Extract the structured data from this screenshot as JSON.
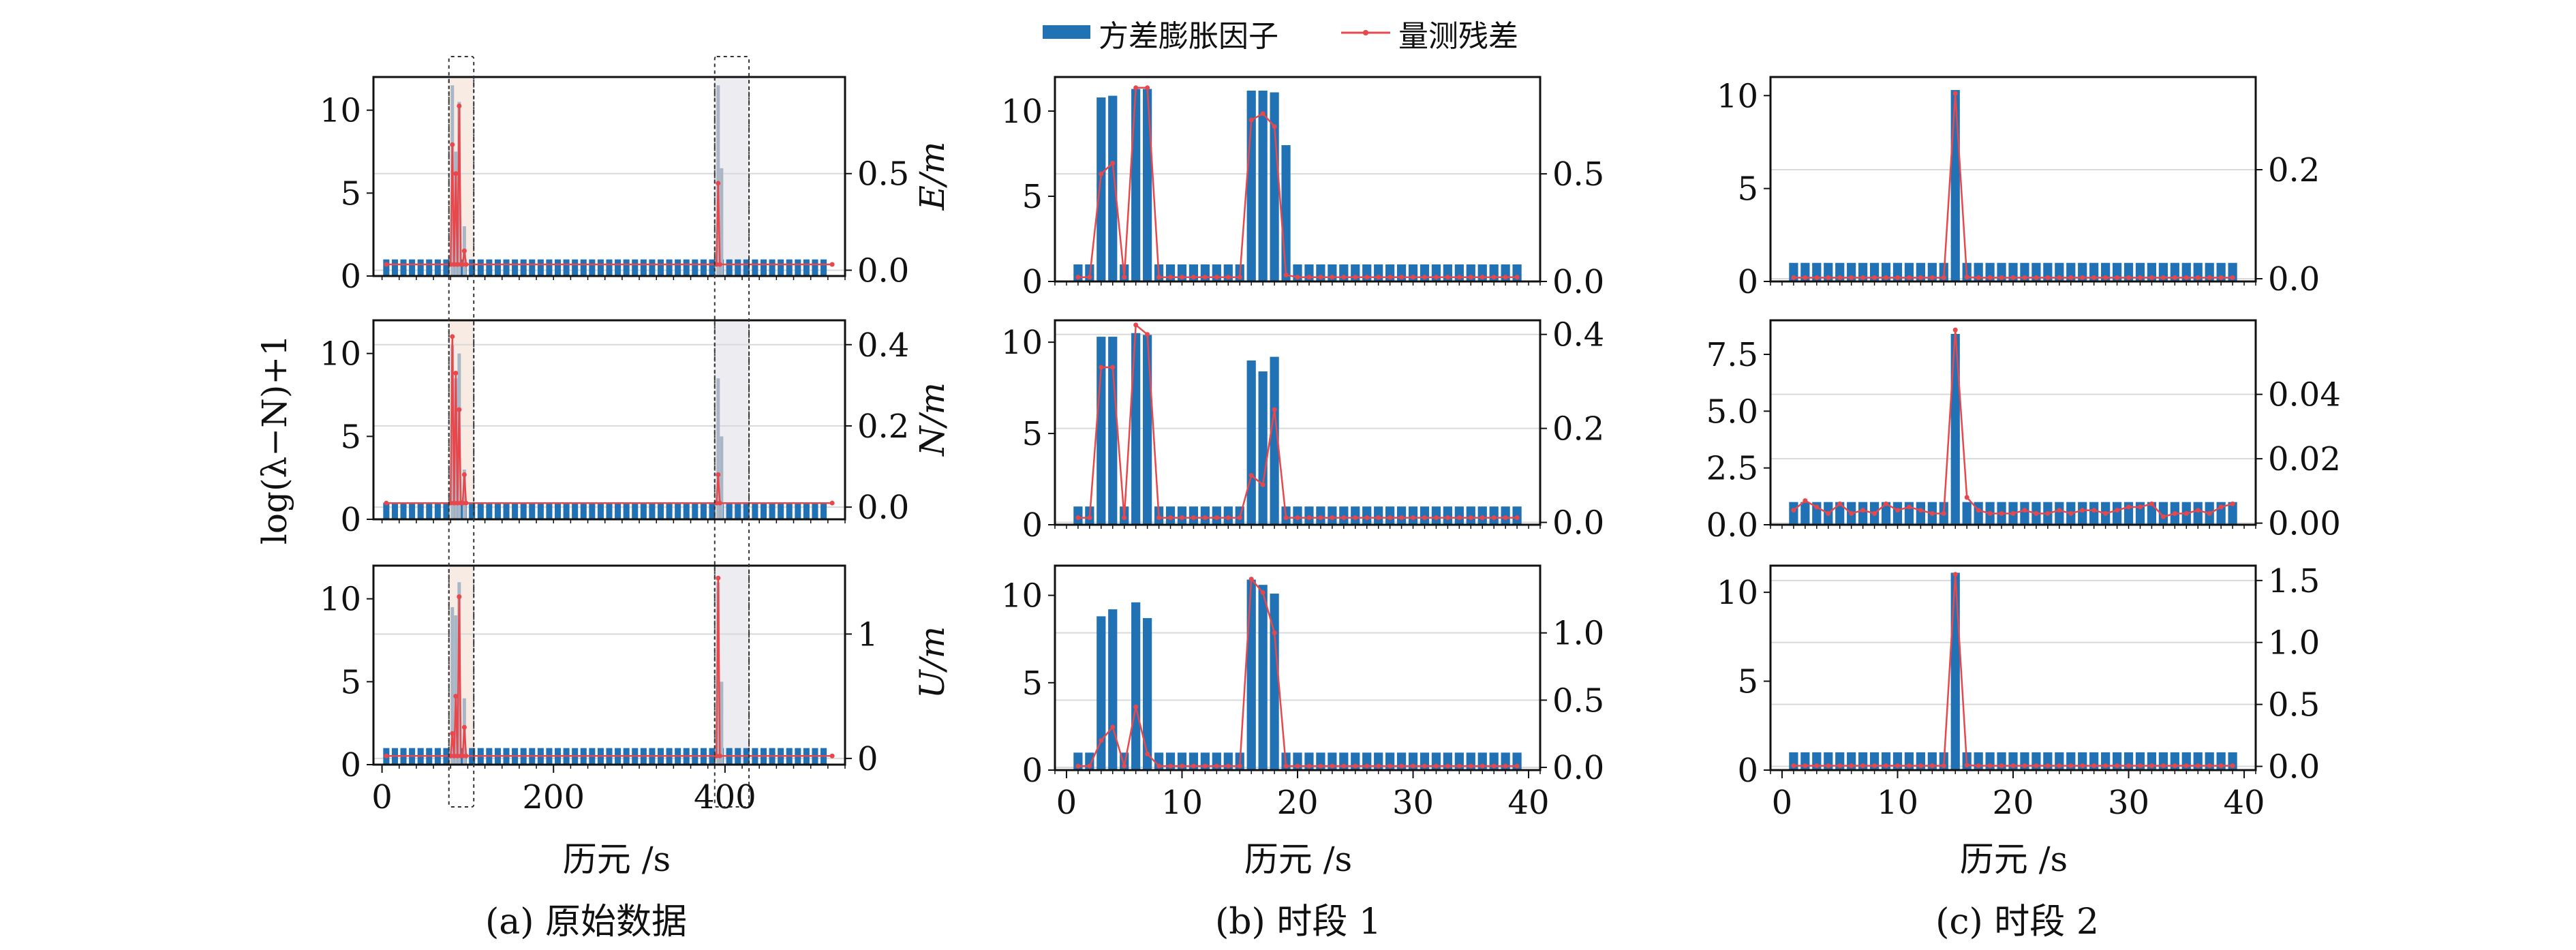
{
  "legend": {
    "bar_label": "方差膨胀因子",
    "line_label": "量测残差"
  },
  "colors": {
    "bar": "#2171b5",
    "line": "#e8474b",
    "highlight_a": "#f7ebe4",
    "highlight_b": "#ececf1",
    "grid": "#d9d9d9"
  },
  "y_label_left": "log(λ−N)+1",
  "row_labels": [
    "E/m",
    "N/m",
    "U/m"
  ],
  "columns": [
    {
      "caption": "(a) 原始数据",
      "xlabel": "历元 /s",
      "x_ticks": [
        "0",
        "200",
        "400"
      ]
    },
    {
      "caption": "(b) 时段 1",
      "xlabel": "历元 /s",
      "x_ticks": [
        "0",
        "10",
        "20",
        "30",
        "40"
      ]
    },
    {
      "caption": "(c) 时段 2",
      "xlabel": "历元 /s",
      "x_ticks": [
        "0",
        "10",
        "20",
        "30",
        "40"
      ]
    }
  ],
  "chart_data": [
    {
      "id": "a-E",
      "type": "bar",
      "panel": "(a) 原始数据",
      "ylabel": "E/m",
      "xlim": [
        -10,
        540
      ],
      "ylim_left": [
        0,
        12
      ],
      "ylim_right": [
        -0.03,
        1.0
      ],
      "left_ticks": [
        "0",
        "5",
        "10"
      ],
      "right_ticks": [
        "0.0",
        "0.5"
      ],
      "highlights": [
        [
          78,
          107
        ],
        [
          388,
          428
        ]
      ],
      "vif": {
        "x_start": 5,
        "x_step": 10,
        "count": 52,
        "baseline": 1,
        "peaks": [
          [
            82,
            11.5
          ],
          [
            86,
            7.5
          ],
          [
            90,
            10.5
          ],
          [
            96,
            3.0
          ],
          [
            392,
            11.5
          ],
          [
            396,
            6.5
          ]
        ]
      },
      "residual": {
        "baseline": 0.03,
        "peaks": [
          [
            82,
            0.65
          ],
          [
            86,
            0.5
          ],
          [
            90,
            0.85
          ],
          [
            96,
            0.1
          ],
          [
            392,
            0.45
          ]
        ]
      }
    },
    {
      "id": "a-N",
      "type": "bar",
      "panel": "(a) 原始数据",
      "ylabel": "N/m",
      "xlim": [
        -10,
        540
      ],
      "ylim_left": [
        0,
        12
      ],
      "ylim_right": [
        -0.03,
        0.46
      ],
      "left_ticks": [
        "0",
        "5",
        "10"
      ],
      "right_ticks": [
        "0.0",
        "0.2",
        "0.4"
      ],
      "highlights": [
        [
          78,
          107
        ],
        [
          388,
          428
        ]
      ],
      "vif": {
        "x_start": 5,
        "x_step": 10,
        "count": 52,
        "baseline": 1,
        "peaks": [
          [
            82,
            10.5
          ],
          [
            86,
            8.5
          ],
          [
            90,
            10.0
          ],
          [
            96,
            3.0
          ],
          [
            392,
            8.5
          ],
          [
            396,
            5.0
          ]
        ]
      },
      "residual": {
        "baseline": 0.01,
        "peaks": [
          [
            82,
            0.42
          ],
          [
            86,
            0.33
          ],
          [
            90,
            0.24
          ],
          [
            96,
            0.08
          ],
          [
            392,
            0.08
          ]
        ]
      }
    },
    {
      "id": "a-U",
      "type": "bar",
      "panel": "(a) 原始数据",
      "ylabel": "U/m",
      "xlim": [
        -10,
        540
      ],
      "ylim_left": [
        0,
        12
      ],
      "ylim_right": [
        -0.05,
        1.55
      ],
      "left_ticks": [
        "0",
        "5",
        "10"
      ],
      "right_ticks": [
        "0",
        "1"
      ],
      "highlights": [
        [
          78,
          107
        ],
        [
          388,
          428
        ]
      ],
      "vif": {
        "x_start": 5,
        "x_step": 10,
        "count": 52,
        "baseline": 1,
        "peaks": [
          [
            82,
            9.5
          ],
          [
            86,
            9.0
          ],
          [
            90,
            11.0
          ],
          [
            96,
            4.0
          ],
          [
            392,
            11.0
          ],
          [
            396,
            5.0
          ]
        ]
      },
      "residual": {
        "baseline": 0.02,
        "peaks": [
          [
            82,
            0.2
          ],
          [
            86,
            0.5
          ],
          [
            90,
            1.3
          ],
          [
            96,
            0.25
          ],
          [
            392,
            1.45
          ]
        ]
      }
    },
    {
      "id": "b-E",
      "type": "bar",
      "panel": "(b) 时段 1",
      "ylabel": "",
      "xlim": [
        -1,
        41
      ],
      "ylim_left": [
        0,
        12
      ],
      "ylim_right": [
        0,
        0.95
      ],
      "left_ticks": [
        "0",
        "5",
        "10"
      ],
      "right_ticks": [
        "0.0",
        "0.5"
      ],
      "x": [
        1,
        2,
        3,
        4,
        5,
        6,
        7,
        8,
        9,
        10,
        11,
        12,
        13,
        14,
        15,
        16,
        17,
        18,
        19,
        20,
        21,
        22,
        23,
        24,
        25,
        26,
        27,
        28,
        29,
        30,
        31,
        32,
        33,
        34,
        35,
        36,
        37,
        38,
        39
      ],
      "vif": [
        1,
        1,
        10.8,
        10.9,
        1,
        11.3,
        11.3,
        1,
        1,
        1,
        1,
        1,
        1,
        1,
        1,
        11.2,
        11.2,
        11.1,
        8,
        1,
        1,
        1,
        1,
        1,
        1,
        1,
        1,
        1,
        1,
        1,
        1,
        1,
        1,
        1,
        1,
        1,
        1,
        1,
        1
      ],
      "residual": [
        0.02,
        0.02,
        0.5,
        0.55,
        0.02,
        0.9,
        0.9,
        0.02,
        0.02,
        0.02,
        0.02,
        0.02,
        0.02,
        0.02,
        0.02,
        0.75,
        0.78,
        0.72,
        0.03,
        0.02,
        0.02,
        0.02,
        0.02,
        0.02,
        0.02,
        0.02,
        0.02,
        0.02,
        0.02,
        0.02,
        0.02,
        0.02,
        0.02,
        0.02,
        0.02,
        0.02,
        0.02,
        0.02,
        0.02
      ]
    },
    {
      "id": "b-N",
      "type": "bar",
      "panel": "(b) 时段 1",
      "ylabel": "",
      "xlim": [
        -1,
        41
      ],
      "ylim_left": [
        0,
        11.2
      ],
      "ylim_right": [
        -0.005,
        0.43
      ],
      "left_ticks": [
        "0",
        "5",
        "10"
      ],
      "right_ticks": [
        "0.0",
        "0.2",
        "0.4"
      ],
      "x": [
        1,
        2,
        3,
        4,
        5,
        6,
        7,
        8,
        9,
        10,
        11,
        12,
        13,
        14,
        15,
        16,
        17,
        18,
        19,
        20,
        21,
        22,
        23,
        24,
        25,
        26,
        27,
        28,
        29,
        30,
        31,
        32,
        33,
        34,
        35,
        36,
        37,
        38,
        39
      ],
      "vif": [
        1,
        1,
        10.3,
        10.3,
        1,
        10.5,
        10.4,
        1,
        1,
        1,
        1,
        1,
        1,
        1,
        1,
        9,
        8.4,
        9.2,
        1,
        1,
        1,
        1,
        1,
        1,
        1,
        1,
        1,
        1,
        1,
        1,
        1,
        1,
        1,
        1,
        1,
        1,
        1,
        1,
        1
      ],
      "residual": [
        0.01,
        0.01,
        0.33,
        0.33,
        0.01,
        0.42,
        0.4,
        0.01,
        0.01,
        0.01,
        0.01,
        0.01,
        0.01,
        0.01,
        0.01,
        0.1,
        0.08,
        0.24,
        0.01,
        0.01,
        0.01,
        0.01,
        0.01,
        0.01,
        0.01,
        0.01,
        0.01,
        0.01,
        0.01,
        0.01,
        0.01,
        0.01,
        0.01,
        0.01,
        0.01,
        0.01,
        0.01,
        0.01,
        0.01
      ]
    },
    {
      "id": "b-U",
      "type": "bar",
      "panel": "(b) 时段 1",
      "ylabel": "",
      "xlim": [
        -1,
        41
      ],
      "ylim_left": [
        0,
        11.7
      ],
      "ylim_right": [
        -0.02,
        1.5
      ],
      "left_ticks": [
        "0",
        "5",
        "10"
      ],
      "right_ticks": [
        "0.0",
        "0.5",
        "1.0"
      ],
      "x": [
        1,
        2,
        3,
        4,
        5,
        6,
        7,
        8,
        9,
        10,
        11,
        12,
        13,
        14,
        15,
        16,
        17,
        18,
        19,
        20,
        21,
        22,
        23,
        24,
        25,
        26,
        27,
        28,
        29,
        30,
        31,
        32,
        33,
        34,
        35,
        36,
        37,
        38,
        39
      ],
      "vif": [
        1,
        1,
        8.8,
        9.2,
        1,
        9.6,
        8.7,
        1,
        1,
        1,
        1,
        1,
        1,
        1,
        1,
        10.9,
        10.6,
        10.1,
        1,
        1,
        1,
        1,
        1,
        1,
        1,
        1,
        1,
        1,
        1,
        1,
        1,
        1,
        1,
        1,
        1,
        1,
        1,
        1,
        1
      ],
      "residual": [
        0.01,
        0.01,
        0.2,
        0.3,
        0.01,
        0.45,
        0.1,
        0.01,
        0.01,
        0.01,
        0.01,
        0.01,
        0.01,
        0.01,
        0.01,
        1.4,
        1.3,
        1.0,
        0.01,
        0.01,
        0.01,
        0.01,
        0.01,
        0.01,
        0.01,
        0.01,
        0.01,
        0.01,
        0.01,
        0.01,
        0.01,
        0.01,
        0.01,
        0.01,
        0.01,
        0.01,
        0.01,
        0.01,
        0.01
      ]
    },
    {
      "id": "c-E",
      "type": "bar",
      "panel": "(c) 时段 2",
      "ylabel": "",
      "xlim": [
        -1,
        41
      ],
      "ylim_left": [
        0,
        11
      ],
      "ylim_right": [
        -0.005,
        0.37
      ],
      "left_ticks": [
        "0",
        "5",
        "10"
      ],
      "right_ticks": [
        "0.0",
        "0.2"
      ],
      "x": [
        1,
        2,
        3,
        4,
        5,
        6,
        7,
        8,
        9,
        10,
        11,
        12,
        13,
        14,
        15,
        16,
        17,
        18,
        19,
        20,
        21,
        22,
        23,
        24,
        25,
        26,
        27,
        28,
        29,
        30,
        31,
        32,
        33,
        34,
        35,
        36,
        37,
        38,
        39
      ],
      "vif": [
        1,
        1,
        1,
        1,
        1,
        1,
        1,
        1,
        1,
        1,
        1,
        1,
        1,
        1,
        10.3,
        1,
        1,
        1,
        1,
        1,
        1,
        1,
        1,
        1,
        1,
        1,
        1,
        1,
        1,
        1,
        1,
        1,
        1,
        1,
        1,
        1,
        1,
        1,
        1
      ],
      "residual": [
        0.002,
        0.002,
        0.002,
        0.002,
        0.002,
        0.002,
        0.002,
        0.002,
        0.002,
        0.002,
        0.002,
        0.002,
        0.002,
        0.002,
        0.34,
        0.003,
        0.002,
        0.002,
        0.002,
        0.002,
        0.002,
        0.002,
        0.002,
        0.002,
        0.002,
        0.002,
        0.002,
        0.002,
        0.002,
        0.002,
        0.002,
        0.002,
        0.002,
        0.002,
        0.002,
        0.002,
        0.002,
        0.002,
        0.002
      ]
    },
    {
      "id": "c-N",
      "type": "bar",
      "panel": "(c) 时段 2",
      "ylabel": "",
      "xlim": [
        -1,
        41
      ],
      "ylim_left": [
        0,
        9
      ],
      "ylim_right": [
        -0.0005,
        0.063
      ],
      "left_ticks": [
        "0.0",
        "2.5",
        "5.0",
        "7.5"
      ],
      "right_ticks": [
        "0.00",
        "0.02",
        "0.04"
      ],
      "x": [
        1,
        2,
        3,
        4,
        5,
        6,
        7,
        8,
        9,
        10,
        11,
        12,
        13,
        14,
        15,
        16,
        17,
        18,
        19,
        20,
        21,
        22,
        23,
        24,
        25,
        26,
        27,
        28,
        29,
        30,
        31,
        32,
        33,
        34,
        35,
        36,
        37,
        38,
        39
      ],
      "vif": [
        1,
        1,
        1,
        1,
        1,
        1,
        1,
        1,
        1,
        1,
        1,
        1,
        1,
        1,
        8.4,
        1,
        1,
        1,
        1,
        1,
        1,
        1,
        1,
        1,
        1,
        1,
        1,
        1,
        1,
        1,
        1,
        1,
        1,
        1,
        1,
        1,
        1,
        1,
        1
      ],
      "residual": [
        0.004,
        0.007,
        0.005,
        0.003,
        0.006,
        0.003,
        0.004,
        0.003,
        0.006,
        0.004,
        0.005,
        0.004,
        0.003,
        0.003,
        0.06,
        0.008,
        0.004,
        0.003,
        0.003,
        0.003,
        0.004,
        0.003,
        0.003,
        0.004,
        0.003,
        0.004,
        0.004,
        0.003,
        0.004,
        0.005,
        0.005,
        0.006,
        0.002,
        0.003,
        0.003,
        0.004,
        0.003,
        0.005,
        0.006
      ]
    },
    {
      "id": "c-U",
      "type": "bar",
      "panel": "(c) 时段 2",
      "ylabel": "",
      "xlim": [
        -1,
        41
      ],
      "ylim_left": [
        0,
        11.5
      ],
      "ylim_right": [
        -0.03,
        1.62
      ],
      "left_ticks": [
        "0",
        "5",
        "10"
      ],
      "right_ticks": [
        "0.0",
        "0.5",
        "1.0",
        "1.5"
      ],
      "x": [
        1,
        2,
        3,
        4,
        5,
        6,
        7,
        8,
        9,
        10,
        11,
        12,
        13,
        14,
        15,
        16,
        17,
        18,
        19,
        20,
        21,
        22,
        23,
        24,
        25,
        26,
        27,
        28,
        29,
        30,
        31,
        32,
        33,
        34,
        35,
        36,
        37,
        38,
        39
      ],
      "vif": [
        1,
        1,
        1,
        1,
        1,
        1,
        1,
        1,
        1,
        1,
        1,
        1,
        1,
        1,
        11.1,
        1,
        1,
        1,
        1,
        1,
        1,
        1,
        1,
        1,
        1,
        1,
        1,
        1,
        1,
        1,
        1,
        1,
        1,
        1,
        1,
        1,
        1,
        1,
        1
      ],
      "residual": [
        0.005,
        0.005,
        0.005,
        0.005,
        0.005,
        0.005,
        0.005,
        0.005,
        0.005,
        0.005,
        0.005,
        0.005,
        0.005,
        0.005,
        1.55,
        0.01,
        0.005,
        0.005,
        0.005,
        0.005,
        0.005,
        0.005,
        0.005,
        0.005,
        0.005,
        0.005,
        0.005,
        0.005,
        0.005,
        0.005,
        0.005,
        0.005,
        0.005,
        0.005,
        0.005,
        0.005,
        0.005,
        0.005,
        0.005
      ]
    }
  ]
}
